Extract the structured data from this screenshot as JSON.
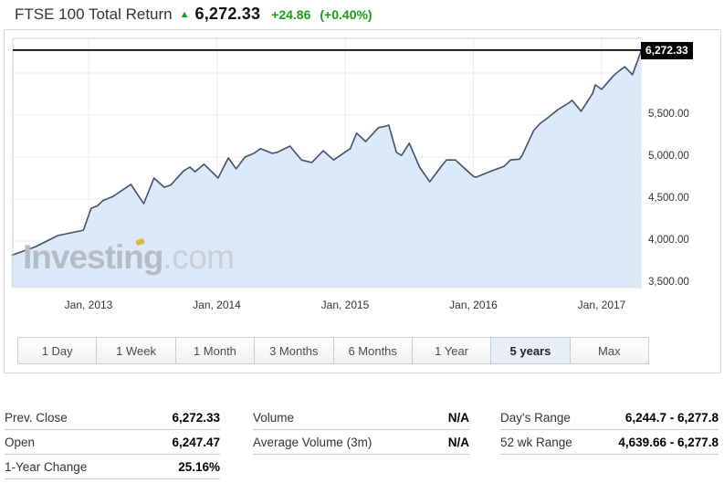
{
  "header": {
    "title": "FTSE 100 Total Return",
    "arrow_icon": "up-triangle",
    "price": "6,272.33",
    "change": "+24.86",
    "change_pct": "(+0.40%)",
    "change_color": "#15a115"
  },
  "chart_data": {
    "type": "area",
    "title": "FTSE 100 Total Return — 5 year chart",
    "xlabel": "",
    "ylabel": "",
    "grid": true,
    "legend_position": "none",
    "line_color": "#41506d",
    "fill_color": "#dce9f8",
    "xlim": [
      2012.38,
      2017.33
    ],
    "ylim": [
      3446,
      6390
    ],
    "x": [
      2012.4,
      2012.59,
      2012.76,
      2012.93,
      2012.96,
      2013.02,
      2013.07,
      2013.11,
      2013.19,
      2013.33,
      2013.43,
      2013.51,
      2013.59,
      2013.64,
      2013.74,
      2013.79,
      2013.83,
      2013.9,
      2014.01,
      2014.09,
      2014.15,
      2014.22,
      2014.29,
      2014.34,
      2014.43,
      2014.47,
      2014.57,
      2014.66,
      2014.74,
      2014.83,
      2014.91,
      2015.04,
      2015.09,
      2015.16,
      2015.26,
      2015.32,
      2015.34,
      2015.4,
      2015.44,
      2015.5,
      2015.58,
      2015.66,
      2015.75,
      2015.79,
      2015.86,
      2016.0,
      2016.02,
      2016.14,
      2016.24,
      2016.29,
      2016.36,
      2016.38,
      2016.47,
      2016.52,
      2016.57,
      2016.66,
      2016.74,
      2016.77,
      2016.84,
      2016.93,
      2016.95,
      2017.0,
      2017.09,
      2017.14,
      2017.18,
      2017.24,
      2017.31
    ],
    "values": [
      3830,
      3935,
      4065,
      4120,
      4130,
      4390,
      4420,
      4480,
      4530,
      4675,
      4445,
      4750,
      4640,
      4665,
      4835,
      4880,
      4825,
      4915,
      4750,
      4990,
      4860,
      5000,
      5045,
      5100,
      5045,
      5055,
      5130,
      4965,
      4935,
      5075,
      4965,
      5100,
      5285,
      5185,
      5350,
      5370,
      5380,
      5055,
      5020,
      5165,
      4880,
      4705,
      4890,
      4965,
      4965,
      4770,
      4760,
      4835,
      4890,
      4965,
      4975,
      5020,
      5315,
      5400,
      5455,
      5565,
      5640,
      5675,
      5545,
      5760,
      5860,
      5805,
      5965,
      6030,
      6075,
      5980,
      6272.33
    ],
    "x_ticks": [
      "Jan, 2013",
      "Jan, 2014",
      "Jan, 2015",
      "Jan, 2016",
      "Jan, 2017"
    ],
    "x_tick_years": [
      2013,
      2014,
      2015,
      2016,
      2017
    ],
    "y_ticks": [
      "5,500.00",
      "5,000.00",
      "4,500.00",
      "4,000.00",
      "3,500.00"
    ],
    "y_tick_values": [
      5500,
      5000,
      4500,
      4000,
      3500
    ],
    "y_grid_values": [
      6000,
      5500,
      5000,
      4500,
      4000,
      3500
    ],
    "last_price": 6272.33,
    "last_price_label": "6,272.33",
    "watermark_brand": "Investing",
    "watermark_suffix": ".com"
  },
  "ranges": {
    "options": [
      {
        "label": "1 Day",
        "selected": false
      },
      {
        "label": "1 Week",
        "selected": false
      },
      {
        "label": "1 Month",
        "selected": false
      },
      {
        "label": "3 Months",
        "selected": false
      },
      {
        "label": "6 Months",
        "selected": false
      },
      {
        "label": "1 Year",
        "selected": false
      },
      {
        "label": "5 years",
        "selected": true
      },
      {
        "label": "Max",
        "selected": false
      }
    ]
  },
  "stats": {
    "columns": [
      {
        "rows": [
          {
            "label": "Prev. Close",
            "value": "6,272.33"
          },
          {
            "label": "Open",
            "value": "6,247.47"
          },
          {
            "label": "1-Year Change",
            "value": "25.16%"
          }
        ]
      },
      {
        "rows": [
          {
            "label": "Volume",
            "value": "N/A"
          },
          {
            "label": "Average Volume (3m)",
            "value": "N/A"
          }
        ]
      },
      {
        "rows": [
          {
            "label": "Day's Range",
            "value": "6,244.7 - 6,277.8"
          },
          {
            "label": "52 wk Range",
            "value": "4,639.66 - 6,277.8"
          }
        ]
      }
    ]
  }
}
